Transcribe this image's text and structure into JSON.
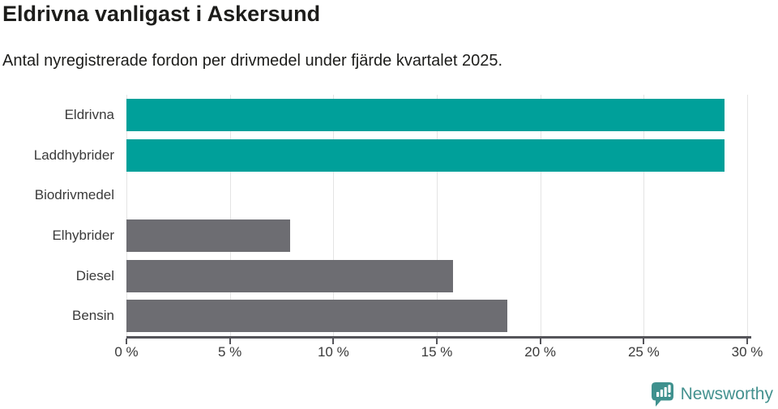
{
  "header": {
    "title": "Eldrivna vanligast i Askersund",
    "subtitle": "Antal nyregistrerade fordon per drivmedel under fjärde kvartalet 2025."
  },
  "chart_data": {
    "type": "bar",
    "orientation": "horizontal",
    "categories": [
      "Eldrivna",
      "Laddhybrider",
      "Biodrivmedel",
      "Elhybrider",
      "Diesel",
      "Bensin"
    ],
    "values": [
      28.9,
      28.9,
      0,
      7.9,
      15.8,
      18.4
    ],
    "bar_colors": [
      "#00a09a",
      "#00a09a",
      "#6d6d72",
      "#6d6d72",
      "#6d6d72",
      "#6d6d72"
    ],
    "unit": "%",
    "xlim": [
      0,
      30
    ],
    "x_tick_values": [
      0,
      5,
      10,
      15,
      20,
      25,
      30
    ],
    "x_tick_labels": [
      "0 %",
      "5 %",
      "10 %",
      "15 %",
      "20 %",
      "25 %",
      "30 %"
    ],
    "grid": true,
    "legend": "none",
    "title": "Eldrivna vanligast i Askersund",
    "xlabel": "",
    "ylabel": ""
  },
  "colors": {
    "accent_teal": "#00a09a",
    "neutral_gray": "#6d6d72",
    "axis": "#55555a",
    "gridline": "#e4e4e4",
    "text": "#1d1d1b",
    "brand": "#44918f"
  },
  "footer": {
    "brand": "Newsworthy",
    "logo_icon": "newsworthy-speech-bubble-bar-chart-icon"
  }
}
